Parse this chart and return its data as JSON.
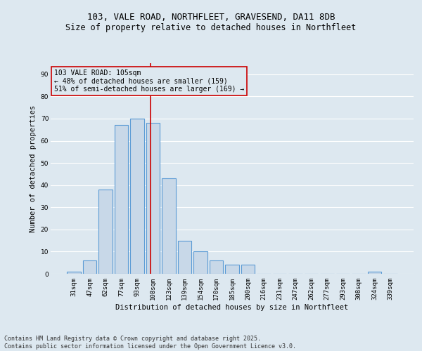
{
  "title_line1": "103, VALE ROAD, NORTHFLEET, GRAVESEND, DA11 8DB",
  "title_line2": "Size of property relative to detached houses in Northfleet",
  "xlabel": "Distribution of detached houses by size in Northfleet",
  "ylabel": "Number of detached properties",
  "categories": [
    "31sqm",
    "47sqm",
    "62sqm",
    "77sqm",
    "93sqm",
    "108sqm",
    "123sqm",
    "139sqm",
    "154sqm",
    "170sqm",
    "185sqm",
    "200sqm",
    "216sqm",
    "231sqm",
    "247sqm",
    "262sqm",
    "277sqm",
    "293sqm",
    "308sqm",
    "324sqm",
    "339sqm"
  ],
  "values": [
    1,
    6,
    38,
    67,
    70,
    68,
    43,
    15,
    10,
    6,
    4,
    4,
    0,
    0,
    0,
    0,
    0,
    0,
    0,
    1,
    0
  ],
  "bar_color": "#c8d8e8",
  "bar_edge_color": "#5b9bd5",
  "bar_edge_width": 0.8,
  "vline_x": 4.85,
  "vline_color": "#cc0000",
  "vline_label_title": "103 VALE ROAD: 105sqm",
  "vline_label_line2": "← 48% of detached houses are smaller (159)",
  "vline_label_line3": "51% of semi-detached houses are larger (169) →",
  "annotation_box_color": "#cc0000",
  "background_color": "#dde8f0",
  "grid_color": "#ffffff",
  "ylim": [
    0,
    95
  ],
  "yticks": [
    0,
    10,
    20,
    30,
    40,
    50,
    60,
    70,
    80,
    90
  ],
  "footer_line1": "Contains HM Land Registry data © Crown copyright and database right 2025.",
  "footer_line2": "Contains public sector information licensed under the Open Government Licence v3.0.",
  "title_fontsize": 9,
  "subtitle_fontsize": 8.5,
  "axis_label_fontsize": 7.5,
  "tick_fontsize": 6.5,
  "footer_fontsize": 6,
  "annotation_fontsize": 7
}
